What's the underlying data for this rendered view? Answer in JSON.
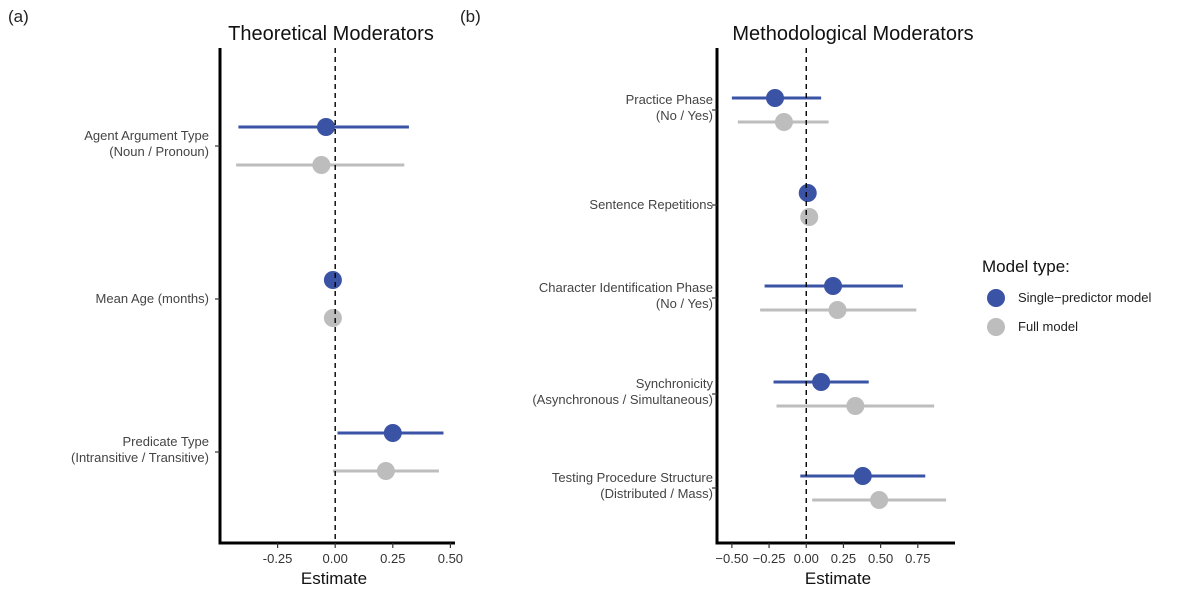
{
  "chart_data": [
    {
      "type": "scatter",
      "panel": "(a)",
      "title": "Theoretical Moderators",
      "xlabel": "Estimate",
      "xlim": [
        -0.5,
        0.52
      ],
      "xticks": [
        "-0.25",
        "0.00",
        "0.25",
        "0.50"
      ],
      "xtick_values": [
        -0.25,
        0,
        0.25,
        0.5
      ],
      "reference_line": 0,
      "categories": [
        {
          "line1": "Agent Argument Type",
          "line2": "(Noun / Pronoun)"
        },
        {
          "line1": "Mean Age (months)",
          "line2": ""
        },
        {
          "line1": "Predicate Type",
          "line2": "(Intransitive / Transitive)"
        }
      ],
      "series": [
        {
          "name": "Single−predictor model",
          "color": "#3a53a4",
          "points": [
            {
              "estimate": -0.04,
              "low": -0.42,
              "high": 0.32
            },
            {
              "estimate": -0.01,
              "low": -0.01,
              "high": -0.01
            },
            {
              "estimate": 0.25,
              "low": 0.01,
              "high": 0.47
            }
          ]
        },
        {
          "name": "Full model",
          "color": "#bdbdbd",
          "points": [
            {
              "estimate": -0.06,
              "low": -0.43,
              "high": 0.3
            },
            {
              "estimate": -0.01,
              "low": -0.01,
              "high": -0.01
            },
            {
              "estimate": 0.22,
              "low": -0.01,
              "high": 0.45
            }
          ]
        }
      ]
    },
    {
      "type": "scatter",
      "panel": "(b)",
      "title": "Methodological Moderators",
      "xlabel": "Estimate",
      "xlim": [
        -0.6,
        1.0
      ],
      "xticks": [
        "−0.50",
        "−0.25",
        "0.00",
        "0.25",
        "0.50",
        "0.75"
      ],
      "xtick_values": [
        -0.5,
        -0.25,
        0,
        0.25,
        0.5,
        0.75
      ],
      "reference_line": 0,
      "categories": [
        {
          "line1": "Practice Phase",
          "line2": "(No / Yes)"
        },
        {
          "line1": "Sentence Repetitions",
          "line2": ""
        },
        {
          "line1": "Character Identification Phase",
          "line2": "(No / Yes)"
        },
        {
          "line1": "Synchronicity",
          "line2": "(Asynchronous / Simultaneous)"
        },
        {
          "line1": "Testing Procedure Structure",
          "line2": "(Distributed / Mass)"
        }
      ],
      "series": [
        {
          "name": "Single−predictor model",
          "color": "#3a53a4",
          "points": [
            {
              "estimate": -0.21,
              "low": -0.5,
              "high": 0.1
            },
            {
              "estimate": 0.01,
              "low": 0.01,
              "high": 0.01
            },
            {
              "estimate": 0.18,
              "low": -0.28,
              "high": 0.65
            },
            {
              "estimate": 0.1,
              "low": -0.22,
              "high": 0.42
            },
            {
              "estimate": 0.38,
              "low": -0.04,
              "high": 0.8
            }
          ]
        },
        {
          "name": "Full model",
          "color": "#bdbdbd",
          "points": [
            {
              "estimate": -0.15,
              "low": -0.46,
              "high": 0.15
            },
            {
              "estimate": 0.02,
              "low": 0.02,
              "high": 0.02
            },
            {
              "estimate": 0.21,
              "low": -0.31,
              "high": 0.74
            },
            {
              "estimate": 0.33,
              "low": -0.2,
              "high": 0.86
            },
            {
              "estimate": 0.49,
              "low": 0.04,
              "high": 0.94
            }
          ]
        }
      ]
    }
  ],
  "legend": {
    "title": "Model type:",
    "items": [
      {
        "label": "Single−predictor model",
        "color": "#3a53a4"
      },
      {
        "label": "Full model",
        "color": "#bdbdbd"
      }
    ]
  }
}
